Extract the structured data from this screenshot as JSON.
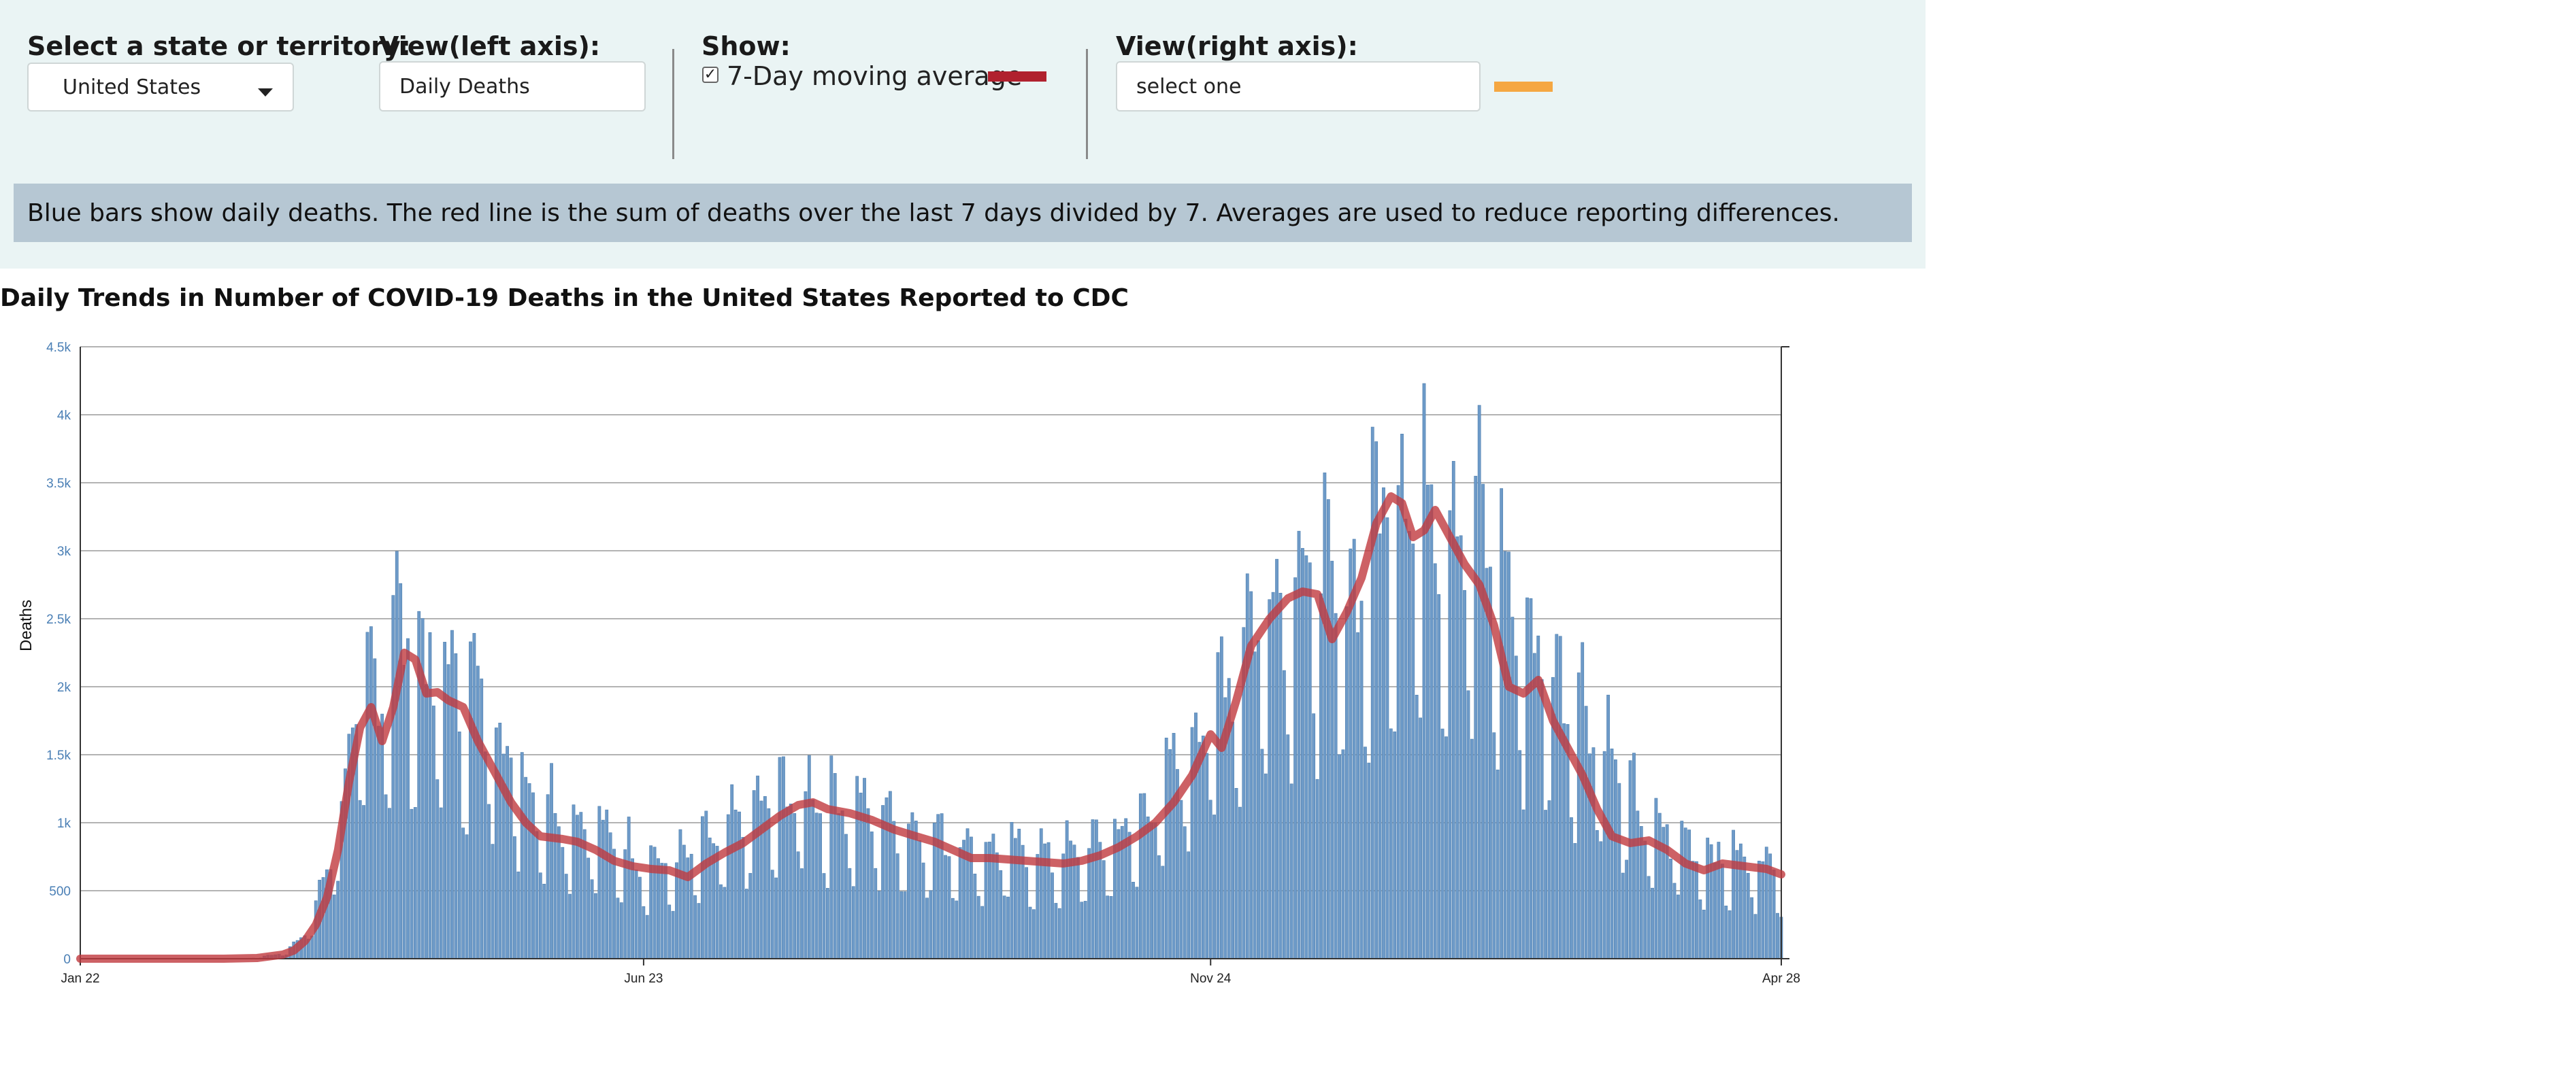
{
  "controls": {
    "state_label": "Select a state or territory:",
    "state_value": "United States",
    "left_axis_label": "View(left axis):",
    "left_axis_value": "Daily Deaths",
    "show_label": "Show:",
    "moving_avg_checked": true,
    "moving_avg_label": "7-Day moving average",
    "moving_avg_color": "#b0212e",
    "right_axis_label": "View(right axis):",
    "right_axis_value": "select one",
    "right_axis_color": "#f5a742"
  },
  "info_text": "Blue bars show daily deaths. The red line is the sum of deaths over the last 7 days divided by 7. Averages are used to reduce reporting differences.",
  "colors": {
    "panel_bg": "#eaf4f4",
    "info_bg": "#b6c7d3",
    "bar": "#6d9ac8",
    "line": "#c0393f",
    "grid": "#9a9a9a"
  },
  "chart_data": {
    "type": "bar",
    "title": "Daily Trends in Number of COVID-19 Deaths in the United States Reported to CDC",
    "ylabel": "Deaths",
    "xlabel": "",
    "ylim": [
      0,
      4500
    ],
    "yticks": [
      0,
      500,
      1000,
      1500,
      2000,
      2500,
      3000,
      3500,
      4000,
      4500
    ],
    "ytick_labels": [
      "0",
      "500",
      "1k",
      "1.5k",
      "2k",
      "2.5k",
      "3k",
      "3.5k",
      "4k",
      "4.5k"
    ],
    "x_start": "2020-01-22",
    "x_end": "2021-04-28",
    "xtick_labels": [
      {
        "date": "2020-01-22",
        "label": "Jan 22"
      },
      {
        "date": "2020-06-23",
        "label": "Jun 23"
      },
      {
        "date": "2020-11-24",
        "label": "Nov 24"
      },
      {
        "date": "2021-04-28",
        "label": "Apr 28"
      }
    ],
    "grid": true,
    "series": [
      {
        "kind": "bars",
        "metric": "Daily Deaths",
        "color": "#6d9ac8",
        "anchors": [
          [
            "2020-01-22",
            0
          ],
          [
            "2020-03-01",
            0
          ],
          [
            "2020-03-10",
            5
          ],
          [
            "2020-03-17",
            40
          ],
          [
            "2020-03-22",
            130
          ],
          [
            "2020-03-27",
            420
          ],
          [
            "2020-03-31",
            850
          ],
          [
            "2020-04-03",
            1200
          ],
          [
            "2020-04-08",
            1850
          ],
          [
            "2020-04-12",
            1900
          ],
          [
            "2020-04-16",
            2300
          ],
          [
            "2020-04-21",
            2150
          ],
          [
            "2020-04-25",
            2000
          ],
          [
            "2020-05-01",
            1950
          ],
          [
            "2020-05-06",
            1850
          ],
          [
            "2020-05-13",
            1700
          ],
          [
            "2020-05-20",
            1300
          ],
          [
            "2020-05-26",
            1100
          ],
          [
            "2020-06-02",
            1000
          ],
          [
            "2020-06-09",
            900
          ],
          [
            "2020-06-16",
            800
          ],
          [
            "2020-06-23",
            680
          ],
          [
            "2020-07-01",
            650
          ],
          [
            "2020-07-08",
            750
          ],
          [
            "2020-07-15",
            850
          ],
          [
            "2020-07-22",
            1000
          ],
          [
            "2020-07-29",
            1100
          ],
          [
            "2020-08-05",
            1150
          ],
          [
            "2020-08-12",
            1100
          ],
          [
            "2020-08-19",
            1050
          ],
          [
            "2020-08-26",
            1000
          ],
          [
            "2020-09-02",
            900
          ],
          [
            "2020-09-09",
            850
          ],
          [
            "2020-09-16",
            800
          ],
          [
            "2020-09-23",
            750
          ],
          [
            "2020-09-30",
            740
          ],
          [
            "2020-10-07",
            720
          ],
          [
            "2020-10-14",
            710
          ],
          [
            "2020-10-21",
            750
          ],
          [
            "2020-10-28",
            820
          ],
          [
            "2020-11-04",
            950
          ],
          [
            "2020-11-11",
            1150
          ],
          [
            "2020-11-18",
            1500
          ],
          [
            "2020-11-24",
            1700
          ],
          [
            "2020-12-01",
            2100
          ],
          [
            "2020-12-08",
            2450
          ],
          [
            "2020-12-15",
            2650
          ],
          [
            "2020-12-22",
            2700
          ],
          [
            "2020-12-29",
            2450
          ],
          [
            "2021-01-05",
            2700
          ],
          [
            "2021-01-12",
            3300
          ],
          [
            "2021-01-19",
            3200
          ],
          [
            "2021-01-26",
            3150
          ],
          [
            "2021-02-02",
            3000
          ],
          [
            "2021-02-09",
            2800
          ],
          [
            "2021-02-16",
            2300
          ],
          [
            "2021-02-23",
            2000
          ],
          [
            "2021-03-02",
            1850
          ],
          [
            "2021-03-09",
            1600
          ],
          [
            "2021-03-16",
            1200
          ],
          [
            "2021-03-23",
            900
          ],
          [
            "2021-03-30",
            850
          ],
          [
            "2021-04-06",
            750
          ],
          [
            "2021-04-13",
            700
          ],
          [
            "2021-04-20",
            680
          ],
          [
            "2021-04-28",
            650
          ]
        ]
      },
      {
        "kind": "line",
        "metric": "7-Day moving average",
        "color": "#c0393f",
        "points": [
          [
            "2020-01-22",
            0
          ],
          [
            "2020-03-01",
            0
          ],
          [
            "2020-03-10",
            5
          ],
          [
            "2020-03-17",
            30
          ],
          [
            "2020-03-20",
            60
          ],
          [
            "2020-03-23",
            130
          ],
          [
            "2020-03-26",
            250
          ],
          [
            "2020-03-29",
            450
          ],
          [
            "2020-04-01",
            800
          ],
          [
            "2020-04-04",
            1300
          ],
          [
            "2020-04-07",
            1700
          ],
          [
            "2020-04-10",
            1850
          ],
          [
            "2020-04-13",
            1600
          ],
          [
            "2020-04-16",
            1850
          ],
          [
            "2020-04-19",
            2250
          ],
          [
            "2020-04-22",
            2200
          ],
          [
            "2020-04-25",
            1950
          ],
          [
            "2020-04-28",
            1960
          ],
          [
            "2020-05-01",
            1900
          ],
          [
            "2020-05-05",
            1850
          ],
          [
            "2020-05-09",
            1600
          ],
          [
            "2020-05-14",
            1350
          ],
          [
            "2020-05-18",
            1150
          ],
          [
            "2020-05-22",
            1000
          ],
          [
            "2020-05-26",
            900
          ],
          [
            "2020-06-01",
            880
          ],
          [
            "2020-06-05",
            860
          ],
          [
            "2020-06-10",
            800
          ],
          [
            "2020-06-15",
            720
          ],
          [
            "2020-06-20",
            680
          ],
          [
            "2020-06-25",
            660
          ],
          [
            "2020-06-30",
            650
          ],
          [
            "2020-07-05",
            600
          ],
          [
            "2020-07-10",
            700
          ],
          [
            "2020-07-15",
            780
          ],
          [
            "2020-07-20",
            850
          ],
          [
            "2020-07-25",
            950
          ],
          [
            "2020-07-30",
            1050
          ],
          [
            "2020-08-04",
            1130
          ],
          [
            "2020-08-08",
            1150
          ],
          [
            "2020-08-12",
            1100
          ],
          [
            "2020-08-18",
            1070
          ],
          [
            "2020-08-24",
            1020
          ],
          [
            "2020-08-30",
            950
          ],
          [
            "2020-09-05",
            900
          ],
          [
            "2020-09-10",
            860
          ],
          [
            "2020-09-15",
            800
          ],
          [
            "2020-09-20",
            740
          ],
          [
            "2020-09-25",
            740
          ],
          [
            "2020-09-30",
            730
          ],
          [
            "2020-10-05",
            720
          ],
          [
            "2020-10-10",
            710
          ],
          [
            "2020-10-15",
            700
          ],
          [
            "2020-10-20",
            720
          ],
          [
            "2020-10-25",
            760
          ],
          [
            "2020-10-30",
            820
          ],
          [
            "2020-11-04",
            900
          ],
          [
            "2020-11-09",
            1000
          ],
          [
            "2020-11-14",
            1150
          ],
          [
            "2020-11-19",
            1350
          ],
          [
            "2020-11-24",
            1650
          ],
          [
            "2020-11-27",
            1550
          ],
          [
            "2020-12-01",
            1900
          ],
          [
            "2020-12-05",
            2300
          ],
          [
            "2020-12-10",
            2500
          ],
          [
            "2020-12-15",
            2650
          ],
          [
            "2020-12-19",
            2700
          ],
          [
            "2020-12-23",
            2680
          ],
          [
            "2020-12-27",
            2350
          ],
          [
            "2020-12-31",
            2550
          ],
          [
            "2021-01-04",
            2800
          ],
          [
            "2021-01-08",
            3200
          ],
          [
            "2021-01-12",
            3400
          ],
          [
            "2021-01-15",
            3350
          ],
          [
            "2021-01-18",
            3100
          ],
          [
            "2021-01-21",
            3150
          ],
          [
            "2021-01-24",
            3300
          ],
          [
            "2021-01-28",
            3100
          ],
          [
            "2021-02-01",
            2900
          ],
          [
            "2021-02-05",
            2750
          ],
          [
            "2021-02-09",
            2450
          ],
          [
            "2021-02-13",
            2000
          ],
          [
            "2021-02-17",
            1950
          ],
          [
            "2021-02-21",
            2050
          ],
          [
            "2021-02-25",
            1750
          ],
          [
            "2021-03-01",
            1550
          ],
          [
            "2021-03-05",
            1350
          ],
          [
            "2021-03-09",
            1100
          ],
          [
            "2021-03-13",
            900
          ],
          [
            "2021-03-18",
            850
          ],
          [
            "2021-03-23",
            870
          ],
          [
            "2021-03-28",
            800
          ],
          [
            "2021-04-02",
            700
          ],
          [
            "2021-04-07",
            650
          ],
          [
            "2021-04-12",
            700
          ],
          [
            "2021-04-18",
            680
          ],
          [
            "2021-04-24",
            660
          ],
          [
            "2021-04-28",
            620
          ]
        ]
      }
    ]
  }
}
